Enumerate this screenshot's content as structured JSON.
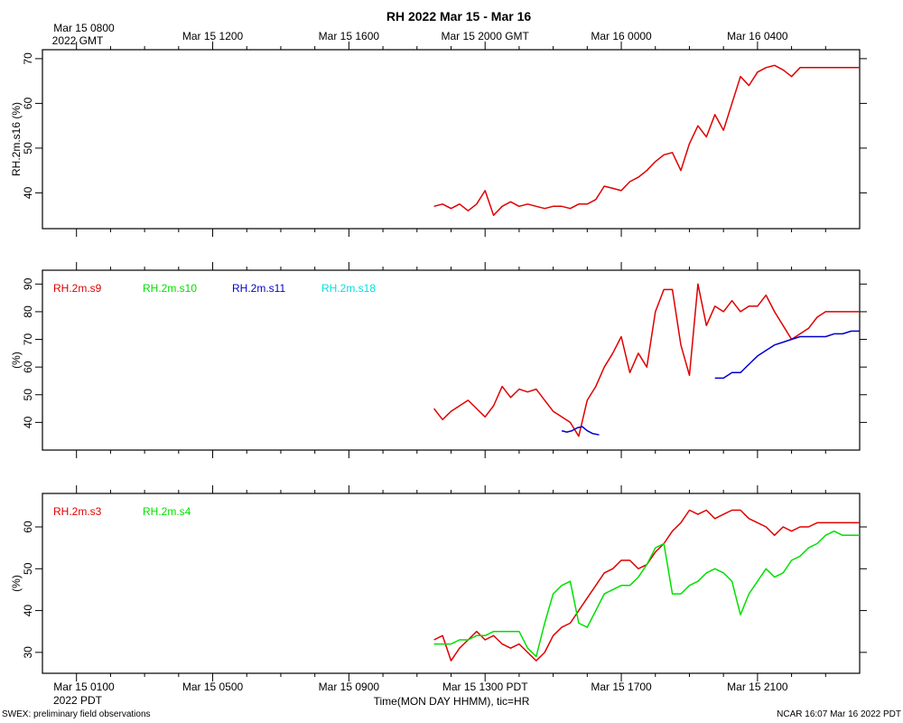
{
  "title": "RH 2022 Mar 15 - Mar 16",
  "top_axis": {
    "first_label_line1": "Mar 15 0800",
    "first_label_line2": "2022 GMT",
    "labels": [
      "Mar 15 1200",
      "Mar 15 1600",
      "Mar 15 2000 GMT",
      "Mar 16 0000",
      "Mar 16 0400"
    ]
  },
  "bottom_axis": {
    "first_label_line1": "Mar 15 0100",
    "first_label_line2": "2022 PDT",
    "labels": [
      "Mar 15 0500",
      "Mar 15 0900",
      "Mar 15 1300 PDT",
      "Mar 15 1700",
      "Mar 15 2100"
    ],
    "xlabel": "Time(MON DAY HHMM), tic=HR"
  },
  "footer": {
    "left": "SWEX: preliminary field observations",
    "right": "NCAR 16:07 Mar 16 2022 PDT"
  },
  "chart_data": [
    {
      "type": "line",
      "ylabel": "RH.2m.s16 (%)",
      "xlim_hours_pdt": [
        0,
        24
      ],
      "ylim": [
        32,
        72
      ],
      "yticks": [
        40,
        50,
        60,
        70
      ],
      "series": [
        {
          "name": "",
          "color": "#e00000",
          "x": [
            11.5,
            11.75,
            12.0,
            12.25,
            12.5,
            12.75,
            13.0,
            13.25,
            13.5,
            13.75,
            14.0,
            14.25,
            14.5,
            14.75,
            15.0,
            15.25,
            15.5,
            15.75,
            16.0,
            16.25,
            16.5,
            16.75,
            17.0,
            17.25,
            17.5,
            17.75,
            18.0,
            18.25,
            18.5,
            18.75,
            19.0,
            19.25,
            19.5,
            19.75,
            20.0,
            20.25,
            20.5,
            20.75,
            21.0,
            21.25,
            21.5,
            21.75,
            22.0,
            22.25,
            22.5,
            22.75,
            23.0,
            23.25,
            23.5,
            23.75,
            24.0
          ],
          "y": [
            37,
            37.5,
            36.5,
            37.5,
            36,
            37.5,
            40.5,
            35,
            37,
            38,
            37,
            37.5,
            37,
            36.5,
            37,
            37,
            36.5,
            37.5,
            37.5,
            38.5,
            41.5,
            41,
            40.5,
            42.5,
            43.5,
            45,
            47,
            48.5,
            49,
            45,
            51,
            55,
            52.5,
            57.5,
            54,
            60,
            66,
            64,
            67,
            68,
            68.5,
            67.5,
            66,
            68,
            68,
            68,
            68,
            68,
            68,
            68,
            68
          ]
        }
      ]
    },
    {
      "type": "line",
      "ylabel": "(%)",
      "xlim_hours_pdt": [
        0,
        24
      ],
      "ylim": [
        30,
        95
      ],
      "yticks": [
        40,
        50,
        60,
        70,
        80,
        90
      ],
      "legend_position": "top-left",
      "series": [
        {
          "name": "RH.2m.s9",
          "color": "#e00000",
          "x": [
            11.5,
            11.75,
            12.0,
            12.25,
            12.5,
            12.75,
            13.0,
            13.25,
            13.5,
            13.75,
            14.0,
            14.25,
            14.5,
            14.75,
            15.0,
            15.25,
            15.5,
            15.75,
            16.0,
            16.25,
            16.5,
            16.75,
            17.0,
            17.25,
            17.5,
            17.75,
            18.0,
            18.25,
            18.5,
            18.75,
            19.0,
            19.25,
            19.5,
            19.75,
            20.0,
            20.25,
            20.5,
            20.75,
            21.0,
            21.25,
            21.5,
            21.75,
            22.0,
            22.25,
            22.5,
            22.75,
            23.0,
            23.25,
            23.5,
            23.75,
            24.0
          ],
          "y": [
            45,
            41,
            44,
            46,
            48,
            45,
            42,
            46,
            53,
            49,
            52,
            51,
            52,
            48,
            44,
            42,
            40,
            35,
            48,
            53,
            60,
            65,
            71,
            58,
            65,
            60,
            80,
            88,
            88,
            68,
            57,
            90,
            75,
            82,
            80,
            84,
            80,
            82,
            82,
            86,
            80,
            75,
            70,
            72,
            74,
            78,
            80,
            80,
            80,
            80,
            80
          ]
        },
        {
          "name": "RH.2m.s10",
          "color": "#00e000",
          "x": [],
          "y": []
        },
        {
          "name": "RH.2m.s11",
          "color": "#0000d0",
          "x": [
            15.25,
            15.4,
            15.55,
            15.7,
            15.85,
            16.0,
            16.15,
            16.35,
            19.75,
            20.0,
            20.25,
            20.5,
            20.75,
            21.0,
            21.25,
            21.5,
            21.75,
            22.0,
            22.25,
            22.5,
            22.75,
            23.0,
            23.25,
            23.5,
            23.75,
            24.0
          ],
          "y": [
            37,
            36.5,
            37,
            38,
            38.5,
            37,
            36,
            35.5,
            56,
            56,
            58,
            58,
            61,
            64,
            66,
            68,
            69,
            70,
            71,
            71,
            71,
            71,
            72,
            72,
            73,
            73
          ]
        },
        {
          "name": "RH.2m.s18",
          "color": "#00e0e0",
          "x": [],
          "y": []
        }
      ]
    },
    {
      "type": "line",
      "ylabel": "(%)",
      "xlim_hours_pdt": [
        0,
        24
      ],
      "ylim": [
        25,
        68
      ],
      "yticks": [
        30,
        40,
        50,
        60
      ],
      "legend_position": "top-left",
      "series": [
        {
          "name": "RH.2m.s3",
          "color": "#e00000",
          "x": [
            11.5,
            11.75,
            12.0,
            12.25,
            12.5,
            12.75,
            13.0,
            13.25,
            13.5,
            13.75,
            14.0,
            14.25,
            14.5,
            14.75,
            15.0,
            15.25,
            15.5,
            15.75,
            16.0,
            16.25,
            16.5,
            16.75,
            17.0,
            17.25,
            17.5,
            17.75,
            18.0,
            18.25,
            18.5,
            18.75,
            19.0,
            19.25,
            19.5,
            19.75,
            20.0,
            20.25,
            20.5,
            20.75,
            21.0,
            21.25,
            21.5,
            21.75,
            22.0,
            22.25,
            22.5,
            22.75,
            23.0,
            23.25,
            23.5,
            23.75,
            24.0
          ],
          "y": [
            33,
            34,
            28,
            31,
            33,
            35,
            33,
            34,
            32,
            31,
            32,
            30,
            28,
            30,
            34,
            36,
            37,
            40,
            43,
            46,
            49,
            50,
            52,
            52,
            50,
            51,
            54,
            56,
            59,
            61,
            64,
            63,
            64,
            62,
            63,
            64,
            64,
            62,
            61,
            60,
            58,
            60,
            59,
            60,
            60,
            61,
            61,
            61,
            61,
            61,
            61
          ]
        },
        {
          "name": "RH.2m.s4",
          "color": "#00e000",
          "x": [
            11.5,
            11.75,
            12.0,
            12.25,
            12.5,
            12.75,
            13.0,
            13.25,
            13.5,
            13.75,
            14.0,
            14.25,
            14.5,
            14.75,
            15.0,
            15.25,
            15.5,
            15.75,
            16.0,
            16.25,
            16.5,
            16.75,
            17.0,
            17.25,
            17.5,
            17.75,
            18.0,
            18.25,
            18.5,
            18.75,
            19.0,
            19.25,
            19.5,
            19.75,
            20.0,
            20.25,
            20.5,
            20.75,
            21.0,
            21.25,
            21.5,
            21.75,
            22.0,
            22.25,
            22.5,
            22.75,
            23.0,
            23.25,
            23.5,
            23.75,
            24.0
          ],
          "y": [
            32,
            32,
            32,
            33,
            33,
            34,
            34,
            35,
            35,
            35,
            35,
            31,
            29,
            37,
            44,
            46,
            47,
            37,
            36,
            40,
            44,
            45,
            46,
            46,
            48,
            51,
            55,
            56,
            44,
            44,
            46,
            47,
            49,
            50,
            49,
            47,
            39,
            44,
            47,
            50,
            48,
            49,
            52,
            53,
            55,
            56,
            58,
            59,
            58,
            58,
            58
          ]
        }
      ]
    }
  ]
}
